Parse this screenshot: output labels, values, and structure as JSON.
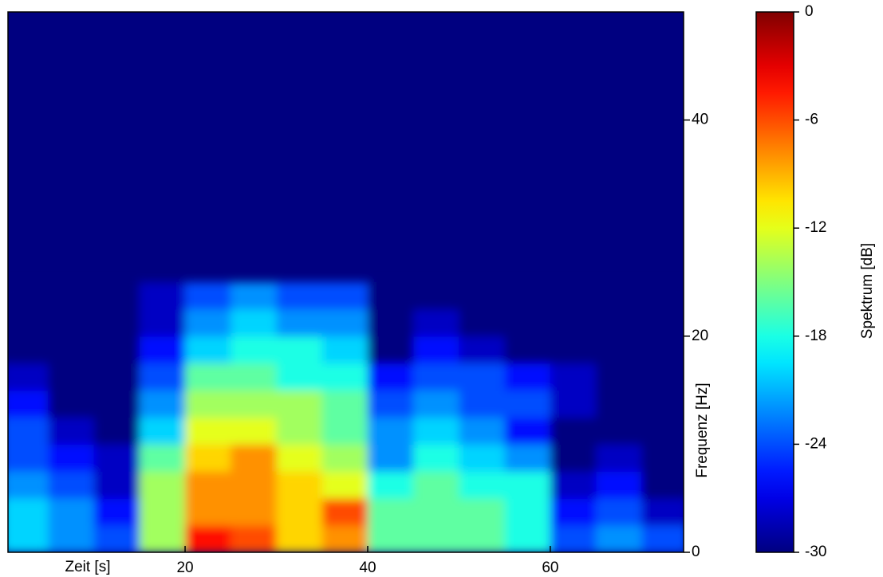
{
  "chart_data": {
    "type": "heatmap",
    "colormap": "jet",
    "xlabel": "Zeit [s]",
    "ylabel": "Frequenz [Hz]",
    "colorbar_label": "Spektrum [dB]",
    "xlim": [
      0.6,
      74.6
    ],
    "ylim": [
      0,
      50
    ],
    "xticks": [
      20,
      40,
      60
    ],
    "yticks": [
      0,
      20,
      40
    ],
    "clim": [
      -30,
      0
    ],
    "cticks": [
      -30,
      -24,
      -18,
      -12,
      -6,
      0
    ],
    "x": [
      2.5,
      7.5,
      12.5,
      17.5,
      22.5,
      27.5,
      32.5,
      37.5,
      42.5,
      47.5,
      52.5,
      57.5,
      62.5,
      67.5,
      72.5
    ],
    "y": [
      1.25,
      3.75,
      6.25,
      8.75,
      11.25,
      13.75,
      16.25,
      18.75,
      21.25,
      23.75
    ],
    "z": [
      [
        -20,
        -22,
        -24,
        -14,
        -4,
        -6,
        -10,
        -8,
        -16,
        -16,
        -16,
        -18,
        -24,
        -22,
        -24
      ],
      [
        -20,
        -22,
        -26,
        -14,
        -8,
        -8,
        -10,
        -6,
        -16,
        -16,
        -16,
        -18,
        -26,
        -24,
        -28
      ],
      [
        -22,
        -24,
        -28,
        -14,
        -8,
        -8,
        -10,
        -12,
        -18,
        -16,
        -18,
        -18,
        -28,
        -26,
        -30
      ],
      [
        -24,
        -26,
        -28,
        -16,
        -10,
        -8,
        -12,
        -14,
        -22,
        -18,
        -20,
        -22,
        -30,
        -28,
        -30
      ],
      [
        -24,
        -28,
        -30,
        -20,
        -12,
        -12,
        -14,
        -16,
        -22,
        -20,
        -22,
        -26,
        -30,
        -30,
        -30
      ],
      [
        -26,
        -30,
        -30,
        -22,
        -14,
        -14,
        -14,
        -16,
        -24,
        -22,
        -24,
        -24,
        -28,
        -30,
        -30
      ],
      [
        -28,
        -30,
        -30,
        -24,
        -16,
        -16,
        -18,
        -18,
        -26,
        -24,
        -24,
        -26,
        -28,
        -30,
        -30
      ],
      [
        -30,
        -30,
        -30,
        -26,
        -20,
        -18,
        -18,
        -20,
        -30,
        -26,
        -28,
        -30,
        -30,
        -30,
        -30
      ],
      [
        -30,
        -30,
        -30,
        -28,
        -22,
        -20,
        -22,
        -22,
        -30,
        -28,
        -30,
        -30,
        -30,
        -30,
        -30
      ],
      [
        -30,
        -30,
        -30,
        -28,
        -24,
        -22,
        -24,
        -24,
        -30,
        -30,
        -30,
        -30,
        -30,
        -30,
        -30
      ]
    ]
  }
}
